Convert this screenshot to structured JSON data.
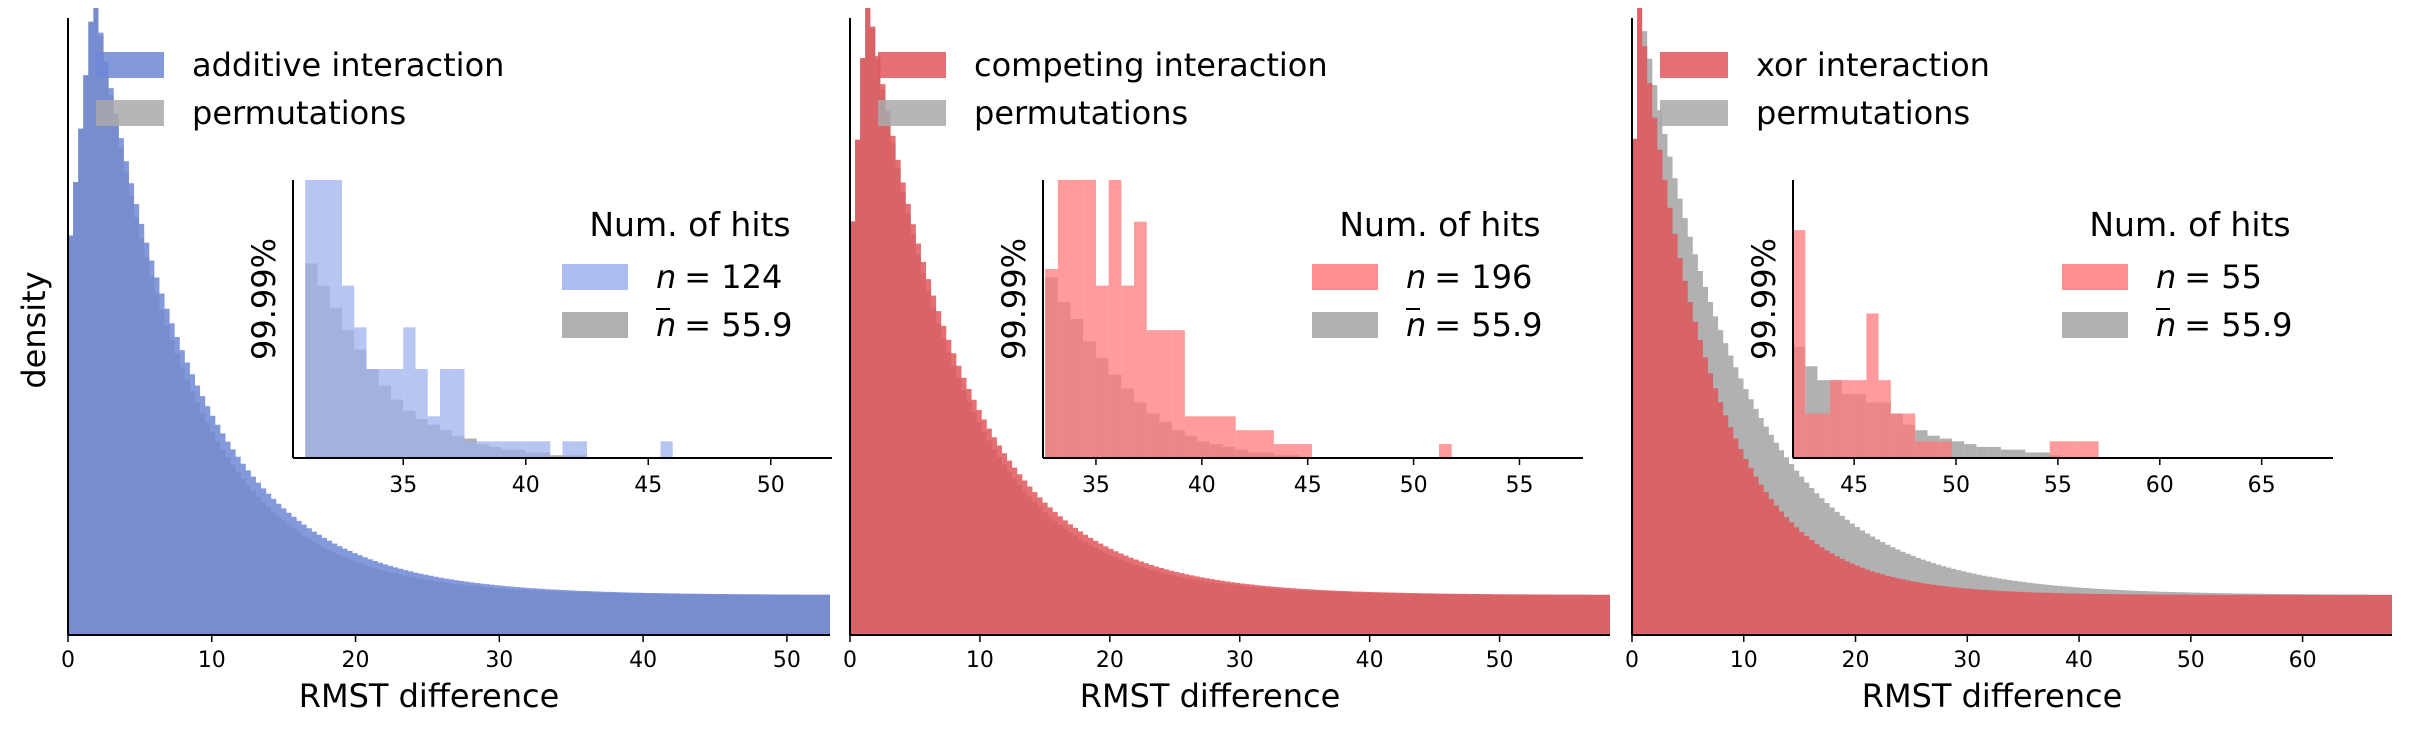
{
  "figure": {
    "ylabel": "density"
  },
  "colors": {
    "blue": "#6f87d6",
    "blue_light": "#9eb2ee",
    "red": "#e0575a",
    "red_light": "#ff7a7c",
    "gray": "#a9a9a9",
    "axis": "#000000"
  },
  "chart_data": [
    {
      "type": "histogram",
      "xlabel": "RMST difference",
      "ylabel": "density",
      "xlim": [
        0,
        53
      ],
      "xticks": [
        0,
        10,
        20,
        30,
        40,
        50
      ],
      "legend": [
        {
          "label": "additive interaction",
          "color": "blue"
        },
        {
          "label": "permutations",
          "color": "gray"
        }
      ],
      "main_color": "blue",
      "main_decay": 6.8,
      "main_peak_x": 1.8,
      "perm_decay": 6.3,
      "perm_peak_x": 1.8,
      "inset": {
        "ylabel": "99.99%",
        "xlim": [
          30.5,
          52.5
        ],
        "xticks": [
          35,
          40,
          45,
          50
        ],
        "legend_title": "Num. of hits",
        "hits_n": {
          "prefix": "n",
          "equals": "= 124"
        },
        "hits_perm": {
          "prefix": "n",
          "equals": "= 55.9"
        },
        "main_color": "blue_light",
        "bin_width": 0.5,
        "main_bins": [
          [
            31,
            1.0
          ],
          [
            31.5,
            1.0
          ],
          [
            32,
            1.0
          ],
          [
            32.5,
            0.62
          ],
          [
            33,
            0.47
          ],
          [
            33.5,
            0.32
          ],
          [
            34,
            0.32
          ],
          [
            34.5,
            0.32
          ],
          [
            35,
            0.47
          ],
          [
            35.5,
            0.32
          ],
          [
            36,
            0.15
          ],
          [
            36.5,
            0.32
          ],
          [
            37,
            0.32
          ],
          [
            37.5,
            0.06
          ],
          [
            38,
            0.06
          ],
          [
            38.5,
            0.06
          ],
          [
            39,
            0.06
          ],
          [
            39.5,
            0.06
          ],
          [
            40,
            0.06
          ],
          [
            40.5,
            0.06
          ],
          [
            41.5,
            0.06
          ],
          [
            42,
            0.06
          ],
          [
            45.5,
            0.06
          ]
        ],
        "perm_bins": [
          [
            31,
            0.7
          ],
          [
            31.5,
            0.62
          ],
          [
            32,
            0.54
          ],
          [
            32.5,
            0.46
          ],
          [
            33,
            0.39
          ],
          [
            33.5,
            0.32
          ],
          [
            34,
            0.26
          ],
          [
            34.5,
            0.21
          ],
          [
            35,
            0.17
          ],
          [
            35.5,
            0.14
          ],
          [
            36,
            0.12
          ],
          [
            36.5,
            0.1
          ],
          [
            37,
            0.08
          ],
          [
            37.5,
            0.07
          ],
          [
            38,
            0.05
          ],
          [
            38.5,
            0.04
          ],
          [
            39,
            0.03
          ],
          [
            39.5,
            0.03
          ],
          [
            40,
            0.02
          ],
          [
            40.5,
            0.02
          ],
          [
            41,
            0.01
          ],
          [
            41.5,
            0.01
          ],
          [
            42,
            0.01
          ]
        ]
      }
    },
    {
      "type": "histogram",
      "xlabel": "RMST difference",
      "ylabel": "",
      "xlim": [
        0,
        58.5
      ],
      "xticks": [
        0,
        10,
        20,
        30,
        40,
        50
      ],
      "legend": [
        {
          "label": "competing interaction",
          "color": "red"
        },
        {
          "label": "permutations",
          "color": "gray"
        }
      ],
      "main_color": "red",
      "main_decay": 7.3,
      "main_peak_x": 1.3,
      "perm_decay": 6.9,
      "perm_peak_x": 1.3,
      "inset": {
        "ylabel": "99.99%",
        "xlim": [
          32.5,
          58
        ],
        "xticks": [
          35,
          40,
          45,
          50,
          55
        ],
        "legend_title": "Num. of hits",
        "hits_n": {
          "prefix": "n",
          "equals": "= 196"
        },
        "hits_perm": {
          "prefix": "n",
          "equals": "= 55.9"
        },
        "main_color": "red_light",
        "bin_width": 0.6,
        "main_bins": [
          [
            32.6,
            0.68
          ],
          [
            33.2,
            1.0
          ],
          [
            33.8,
            1.0
          ],
          [
            34.4,
            1.0
          ],
          [
            35,
            0.62
          ],
          [
            35.6,
            1.0
          ],
          [
            36.2,
            0.62
          ],
          [
            36.8,
            0.85
          ],
          [
            37.4,
            0.46
          ],
          [
            38,
            0.46
          ],
          [
            38.6,
            0.46
          ],
          [
            39.2,
            0.15
          ],
          [
            39.8,
            0.15
          ],
          [
            40.4,
            0.15
          ],
          [
            41,
            0.15
          ],
          [
            41.6,
            0.1
          ],
          [
            42.2,
            0.1
          ],
          [
            42.8,
            0.1
          ],
          [
            43.4,
            0.05
          ],
          [
            44,
            0.05
          ],
          [
            44.6,
            0.05
          ],
          [
            51.2,
            0.05
          ]
        ],
        "perm_bins": [
          [
            32.6,
            0.65
          ],
          [
            33.2,
            0.56
          ],
          [
            33.8,
            0.5
          ],
          [
            34.4,
            0.42
          ],
          [
            35,
            0.36
          ],
          [
            35.6,
            0.3
          ],
          [
            36.2,
            0.25
          ],
          [
            36.8,
            0.2
          ],
          [
            37.4,
            0.16
          ],
          [
            38,
            0.13
          ],
          [
            38.6,
            0.1
          ],
          [
            39.2,
            0.08
          ],
          [
            39.8,
            0.06
          ],
          [
            40.4,
            0.05
          ],
          [
            41,
            0.04
          ],
          [
            41.6,
            0.03
          ],
          [
            42.2,
            0.02
          ],
          [
            42.8,
            0.02
          ],
          [
            43.4,
            0.01
          ],
          [
            44,
            0.01
          ]
        ]
      }
    },
    {
      "type": "histogram",
      "xlabel": "RMST difference",
      "ylabel": "",
      "xlim": [
        0,
        68
      ],
      "xticks": [
        0,
        10,
        20,
        30,
        40,
        50,
        60
      ],
      "legend": [
        {
          "label": "xor interaction",
          "color": "red"
        },
        {
          "label": "permutations",
          "color": "gray"
        }
      ],
      "main_color": "red",
      "main_decay": 6.5,
      "main_peak_x": 0.5,
      "perm_decay": 9.0,
      "perm_peak_x": 0.5,
      "inset": {
        "ylabel": "99.99%",
        "xlim": [
          42,
          68.5
        ],
        "xticks": [
          45,
          50,
          55,
          60,
          65
        ],
        "legend_title": "Num. of hits",
        "hits_n": {
          "prefix": "n",
          "equals": "= 55"
        },
        "hits_perm": {
          "prefix": "n",
          "equals": "= 55.9"
        },
        "main_color": "red_light",
        "bin_width": 0.6,
        "main_bins": [
          [
            42,
            0.82
          ],
          [
            42.6,
            0.16
          ],
          [
            43.2,
            0.16
          ],
          [
            43.8,
            0.28
          ],
          [
            44.4,
            0.28
          ],
          [
            45,
            0.28
          ],
          [
            45.6,
            0.52
          ],
          [
            46.2,
            0.28
          ],
          [
            46.8,
            0.16
          ],
          [
            47.4,
            0.16
          ],
          [
            48,
            0.06
          ],
          [
            48.6,
            0.06
          ],
          [
            49.2,
            0.06
          ],
          [
            54.6,
            0.06
          ],
          [
            55.2,
            0.06
          ],
          [
            55.8,
            0.06
          ],
          [
            56.4,
            0.06
          ]
        ],
        "perm_bins": [
          [
            42,
            0.4
          ],
          [
            42.6,
            0.33
          ],
          [
            43.2,
            0.28
          ],
          [
            43.8,
            0.28
          ],
          [
            44.4,
            0.23
          ],
          [
            45,
            0.23
          ],
          [
            45.6,
            0.2
          ],
          [
            46.2,
            0.2
          ],
          [
            46.8,
            0.16
          ],
          [
            47.4,
            0.12
          ],
          [
            48,
            0.1
          ],
          [
            48.6,
            0.08
          ],
          [
            49.2,
            0.07
          ],
          [
            49.8,
            0.06
          ],
          [
            50.4,
            0.05
          ],
          [
            51,
            0.04
          ],
          [
            51.6,
            0.04
          ],
          [
            52.2,
            0.03
          ],
          [
            52.8,
            0.03
          ],
          [
            53.4,
            0.02
          ],
          [
            54,
            0.02
          ],
          [
            54.6,
            0.01
          ]
        ]
      }
    }
  ]
}
